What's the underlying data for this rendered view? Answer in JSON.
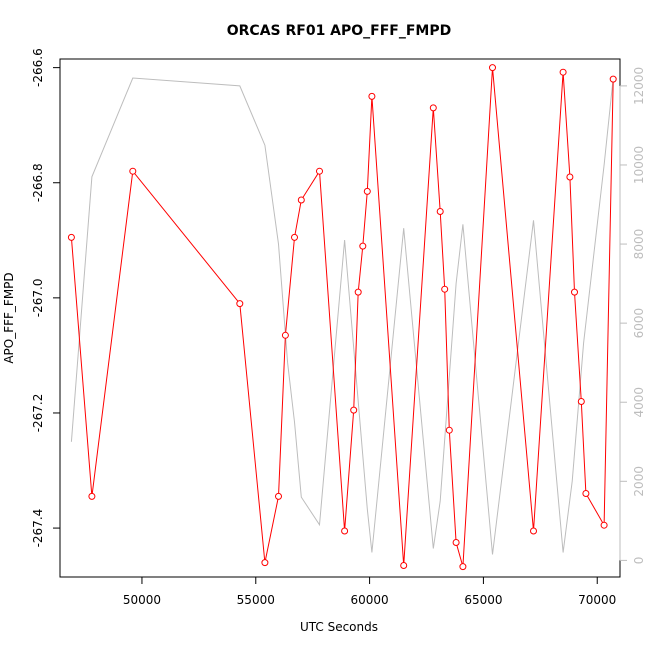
{
  "chart_data": {
    "type": "line",
    "title": "ORCAS RF01 APO_FFF_FMPD",
    "xlabel": "UTC Seconds",
    "ylabel": "APO_FFF_FMPD",
    "xlim": [
      46400,
      71000
    ],
    "ylim": [
      -267.485,
      -266.585
    ],
    "y2lim": [
      -420,
      12680
    ],
    "x_ticks": [
      50000,
      55000,
      60000,
      65000,
      70000
    ],
    "x_tick_labels": [
      "50000",
      "55000",
      "60000",
      "65000",
      "70000"
    ],
    "y_ticks": [
      -267.4,
      -267.2,
      -267.0,
      -266.8,
      -266.6
    ],
    "y_tick_labels": [
      "-267.4",
      "-267.2",
      "-267.0",
      "-266.8",
      "-266.6"
    ],
    "y2_ticks": [
      0,
      2000,
      4000,
      6000,
      8000,
      10000,
      12000
    ],
    "y2_tick_labels": [
      "0",
      "2000",
      "4000",
      "6000",
      "8000",
      "10000",
      "12000"
    ],
    "colors": {
      "primary": "#ff0000",
      "secondary": "#bdbdbd",
      "axis": "#000000"
    },
    "series": [
      {
        "axis": "left",
        "color": "#ff0000",
        "markers": true,
        "x": [
          46900,
          47800,
          49600,
          54300,
          55400,
          56000,
          56300,
          56700,
          57000,
          57800,
          58900,
          59300,
          59500,
          59700,
          59900,
          60100,
          61500,
          62800,
          63100,
          63300,
          63500,
          63800,
          64100,
          65400,
          67200,
          68500,
          68800,
          69000,
          69300,
          69500,
          70300,
          70700
        ],
        "values": [
          -266.895,
          -267.345,
          -266.78,
          -267.01,
          -267.46,
          -267.345,
          -267.065,
          -266.895,
          -266.83,
          -266.78,
          -267.405,
          -267.195,
          -266.99,
          -266.91,
          -266.815,
          -266.65,
          -267.465,
          -266.67,
          -266.85,
          -266.985,
          -267.23,
          -267.425,
          -267.467,
          -266.6,
          -267.405,
          -266.608,
          -266.79,
          -266.99,
          -267.18,
          -267.34,
          -267.395,
          -266.62
        ]
      },
      {
        "axis": "right",
        "color": "#bdbdbd",
        "markers": false,
        "x": [
          46900,
          47800,
          49600,
          54300,
          55400,
          56000,
          56400,
          56700,
          57000,
          57800,
          58900,
          59900,
          60100,
          61500,
          62800,
          63100,
          63800,
          64100,
          65400,
          67200,
          68500,
          68900,
          69400,
          70300,
          70700
        ],
        "values": [
          3000,
          9700,
          12200,
          12000,
          10500,
          8000,
          5000,
          3500,
          1600,
          900,
          8100,
          1300,
          200,
          8400,
          300,
          1500,
          7000,
          8500,
          150,
          8600,
          200,
          2000,
          5500,
          10000,
          12200
        ]
      }
    ]
  }
}
